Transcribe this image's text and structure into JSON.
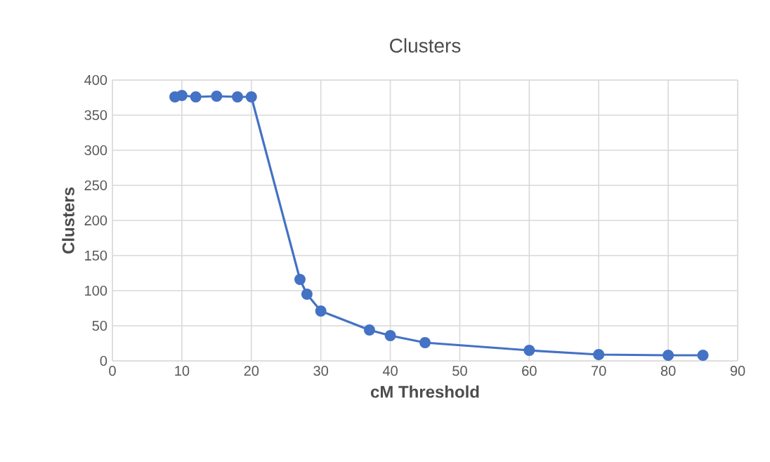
{
  "chart_data": {
    "type": "line",
    "title": "Clusters",
    "xlabel": "cM Threshold",
    "ylabel": "Clusters",
    "x": [
      9,
      10,
      12,
      15,
      18,
      20,
      27,
      28,
      30,
      37,
      40,
      45,
      60,
      70,
      80,
      85
    ],
    "series": [
      {
        "color": "#4472c4",
        "values": [
          376,
          378,
          376,
          377,
          376,
          376,
          116,
          95,
          71,
          44,
          36,
          26,
          15,
          9,
          8,
          8
        ]
      }
    ],
    "xlim": [
      0,
      90
    ],
    "xticks": [
      0,
      10,
      20,
      30,
      40,
      50,
      60,
      70,
      80,
      90
    ],
    "ylim": [
      0,
      400
    ],
    "yticks": [
      0,
      50,
      100,
      150,
      200,
      250,
      300,
      350,
      400
    ],
    "grid": true,
    "marker": "circle",
    "line_style": "solid"
  }
}
